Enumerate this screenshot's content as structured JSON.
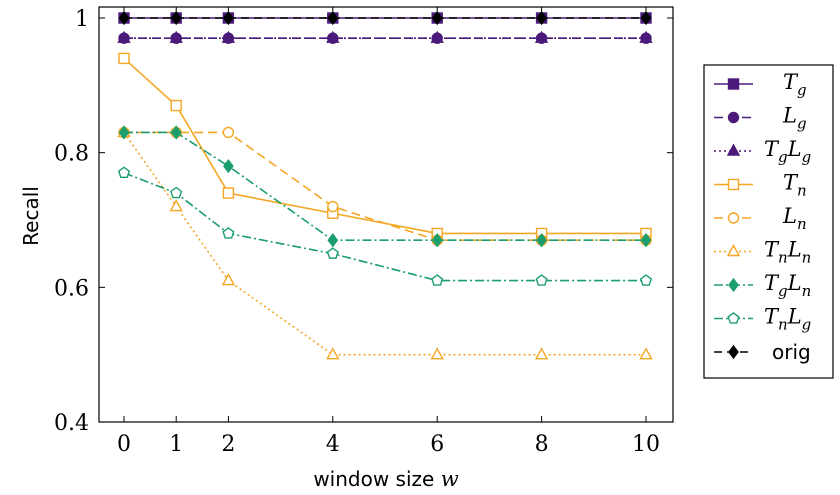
{
  "chart_data": {
    "type": "line",
    "xlabel": "window size w",
    "ylabel": "Recall",
    "x": [
      0,
      1,
      2,
      4,
      6,
      8,
      10
    ],
    "xticks": [
      "0",
      "1",
      "2",
      "4",
      "6",
      "8",
      "10"
    ],
    "yticks": [
      "0.4",
      "0.6",
      "0.8",
      "1"
    ],
    "ylim": [
      0.4,
      1.0
    ],
    "grid": false,
    "legend_position": "right",
    "series": [
      {
        "name": "Tg",
        "label_main": "T",
        "label_sub": "g",
        "color": "#4b1a7a",
        "dash": "",
        "marker": "square-filled",
        "values": [
          1.0,
          1.0,
          1.0,
          1.0,
          1.0,
          1.0,
          1.0
        ]
      },
      {
        "name": "Lg",
        "label_main": "L",
        "label_sub": "g",
        "color": "#4b1a7a",
        "dash": "9,5",
        "marker": "circle-filled",
        "values": [
          0.97,
          0.97,
          0.97,
          0.97,
          0.97,
          0.97,
          0.97
        ]
      },
      {
        "name": "TgLg",
        "label_main": "T",
        "label_sub": "g",
        "label_main2": "L",
        "label_sub2": "g",
        "color": "#4b1a7a",
        "dash": "2,3",
        "marker": "triangle-filled",
        "values": [
          0.97,
          0.97,
          0.97,
          0.97,
          0.97,
          0.97,
          0.97
        ]
      },
      {
        "name": "Tn",
        "label_main": "T",
        "label_sub": "n",
        "color": "#f5a623",
        "dash": "",
        "marker": "square-open",
        "values": [
          0.94,
          0.87,
          0.74,
          0.71,
          0.68,
          0.68,
          0.68
        ]
      },
      {
        "name": "Ln",
        "label_main": "L",
        "label_sub": "n",
        "color": "#f5a623",
        "dash": "9,5",
        "marker": "circle-open",
        "values": [
          0.83,
          0.83,
          0.83,
          0.72,
          0.67,
          0.67,
          0.67
        ]
      },
      {
        "name": "TnLn",
        "label_main": "T",
        "label_sub": "n",
        "label_main2": "L",
        "label_sub2": "n",
        "color": "#f5a623",
        "dash": "2,3",
        "marker": "triangle-open",
        "values": [
          0.83,
          0.72,
          0.61,
          0.5,
          0.5,
          0.5,
          0.5
        ]
      },
      {
        "name": "TgLn",
        "label_main": "T",
        "label_sub": "g",
        "label_main2": "L",
        "label_sub2": "n",
        "color": "#1b9e6e",
        "dash": "9,3,2,3",
        "marker": "diamond-filled",
        "values": [
          0.83,
          0.83,
          0.78,
          0.67,
          0.67,
          0.67,
          0.67
        ]
      },
      {
        "name": "TnLg",
        "label_main": "T",
        "label_sub": "n",
        "label_main2": "L",
        "label_sub2": "g",
        "color": "#1b9e6e",
        "dash": "9,3,2,3",
        "marker": "pentagon-open",
        "values": [
          0.77,
          0.74,
          0.68,
          0.65,
          0.61,
          0.61,
          0.61
        ]
      },
      {
        "name": "orig",
        "label_plain": "orig",
        "color": "#000000",
        "dash": "8,5",
        "marker": "diamond-filled",
        "values": [
          1.0,
          1.0,
          1.0,
          1.0,
          1.0,
          1.0,
          1.0
        ]
      }
    ]
  }
}
